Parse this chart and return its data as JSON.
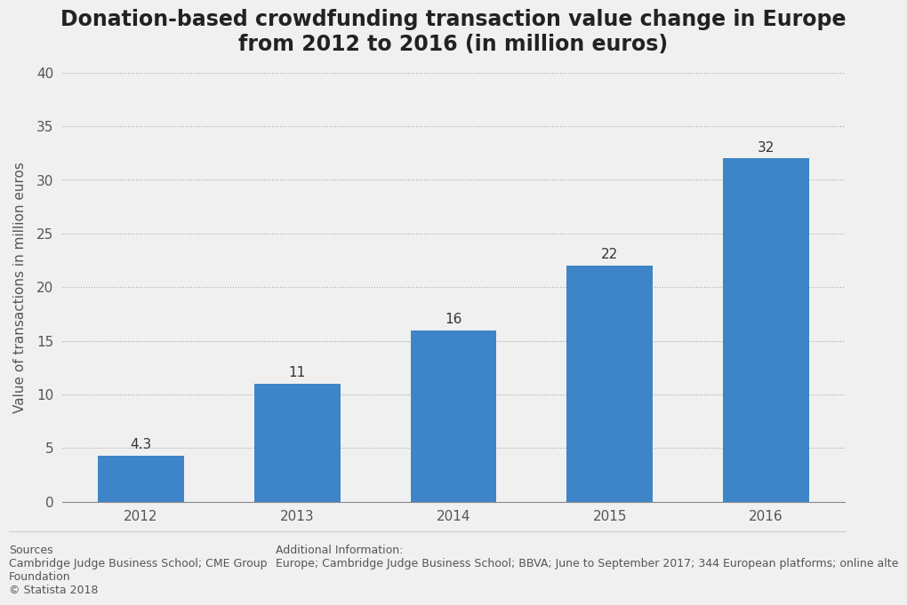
{
  "title": "Donation-based crowdfunding transaction value change in Europe\nfrom 2012 to 2016 (in million euros)",
  "years": [
    "2012",
    "2013",
    "2014",
    "2015",
    "2016"
  ],
  "values": [
    4.3,
    11,
    16,
    22,
    32
  ],
  "bar_color": "#3d85c8",
  "ylabel": "Value of transactions in million euros",
  "ylim": [
    0,
    40
  ],
  "yticks": [
    0,
    5,
    10,
    15,
    20,
    25,
    30,
    35,
    40
  ],
  "background_color": "#f0f0f0",
  "plot_background_color": "#f0f0f0",
  "title_fontsize": 17,
  "label_fontsize": 11,
  "tick_fontsize": 11,
  "bar_label_fontsize": 11,
  "sources_text": "Sources\nCambridge Judge Business School; CME Group\nFoundation\n© Statista 2018",
  "additional_info_text": "Additional Information:\nEurope; Cambridge Judge Business School; BBVA; June to September 2017; 344 European platforms; online alte",
  "footer_fontsize": 9
}
